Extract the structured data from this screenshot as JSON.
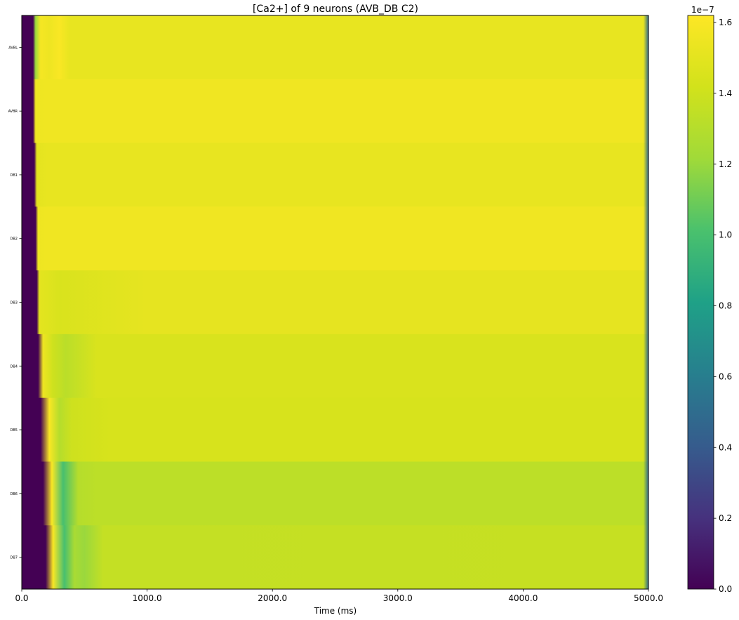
{
  "chart_data": {
    "type": "heatmap",
    "title": "[Ca2+] of 9 neurons (AVB_DB C2)",
    "xlabel": "Time (ms)",
    "ylabel": "",
    "xlim": [
      0,
      5000
    ],
    "x_ticks": [
      0,
      1000,
      2000,
      3000,
      4000,
      5000
    ],
    "x_tick_labels": [
      "0.0",
      "1000.0",
      "2000.0",
      "3000.0",
      "4000.0",
      "5000.0"
    ],
    "rows": [
      "AVBL",
      "AVBR",
      "DB1",
      "DB2",
      "DB3",
      "DB4",
      "DB5",
      "DB6",
      "DB7"
    ],
    "colormap": "viridis",
    "colorbar": {
      "vmin": 0.0,
      "vmax": 1.62e-07,
      "ticks": [
        0.0,
        0.2,
        0.4,
        0.6,
        0.8,
        1.0,
        1.2,
        1.4,
        1.6
      ],
      "tick_labels": [
        "0.0",
        "0.2",
        "0.4",
        "0.6",
        "0.8",
        "1.0",
        "1.2",
        "1.4",
        "1.6"
      ],
      "offset_text": "1e−7"
    },
    "series": [
      {
        "name": "AVBL",
        "onset_ms": 90,
        "values_time_ms": [
          0,
          90,
          110,
          150,
          220,
          300,
          380,
          4960,
          5000
        ],
        "values": [
          0.0,
          0.0,
          1.2e-07,
          1.58e-07,
          1.55e-07,
          1.6e-07,
          1.52e-07,
          1.52e-07,
          5e-08
        ]
      },
      {
        "name": "AVBR",
        "onset_ms": 90,
        "values_time_ms": [
          0,
          90,
          110,
          200,
          4960,
          5000
        ],
        "values": [
          0.0,
          0.0,
          1.55e-07,
          1.56e-07,
          1.56e-07,
          5e-08
        ]
      },
      {
        "name": "DB1",
        "onset_ms": 100,
        "values_time_ms": [
          0,
          100,
          120,
          200,
          4960,
          5000
        ],
        "values": [
          0.0,
          0.0,
          1.5e-07,
          1.52e-07,
          1.52e-07,
          5e-08
        ]
      },
      {
        "name": "DB2",
        "onset_ms": 110,
        "values_time_ms": [
          0,
          110,
          130,
          200,
          4960,
          5000
        ],
        "values": [
          0.0,
          0.0,
          1.55e-07,
          1.56e-07,
          1.56e-07,
          5e-08
        ]
      },
      {
        "name": "DB3",
        "onset_ms": 120,
        "values_time_ms": [
          0,
          120,
          140,
          300,
          1000,
          4960,
          5000
        ],
        "values": [
          0.0,
          0.0,
          1.5e-07,
          1.45e-07,
          1.51e-07,
          1.51e-07,
          5e-08
        ]
      },
      {
        "name": "DB4",
        "onset_ms": 130,
        "values_time_ms": [
          0,
          130,
          170,
          250,
          350,
          600,
          4960,
          5000
        ],
        "values": [
          0.0,
          0.0,
          1.55e-07,
          1.4e-07,
          1.32e-07,
          1.45e-07,
          1.45e-07,
          5e-08
        ]
      },
      {
        "name": "DB5",
        "onset_ms": 150,
        "values_time_ms": [
          0,
          150,
          220,
          300,
          400,
          700,
          4960,
          5000
        ],
        "values": [
          0.0,
          0.0,
          1.6e-07,
          1.3e-07,
          1.4e-07,
          1.44e-07,
          1.44e-07,
          5e-08
        ]
      },
      {
        "name": "DB6",
        "onset_ms": 170,
        "values_time_ms": [
          0,
          170,
          240,
          330,
          450,
          600,
          4960,
          5000
        ],
        "values": [
          0.0,
          0.0,
          1.6e-07,
          1e-07,
          1.3e-07,
          1.33e-07,
          1.33e-07,
          5e-08
        ]
      },
      {
        "name": "DB7",
        "onset_ms": 190,
        "values_time_ms": [
          0,
          190,
          250,
          340,
          420,
          500,
          650,
          4960,
          5000
        ],
        "values": [
          0.0,
          0.0,
          1.6e-07,
          1e-07,
          1.25e-07,
          1.2e-07,
          1.36e-07,
          1.37e-07,
          5e-08
        ]
      }
    ]
  }
}
